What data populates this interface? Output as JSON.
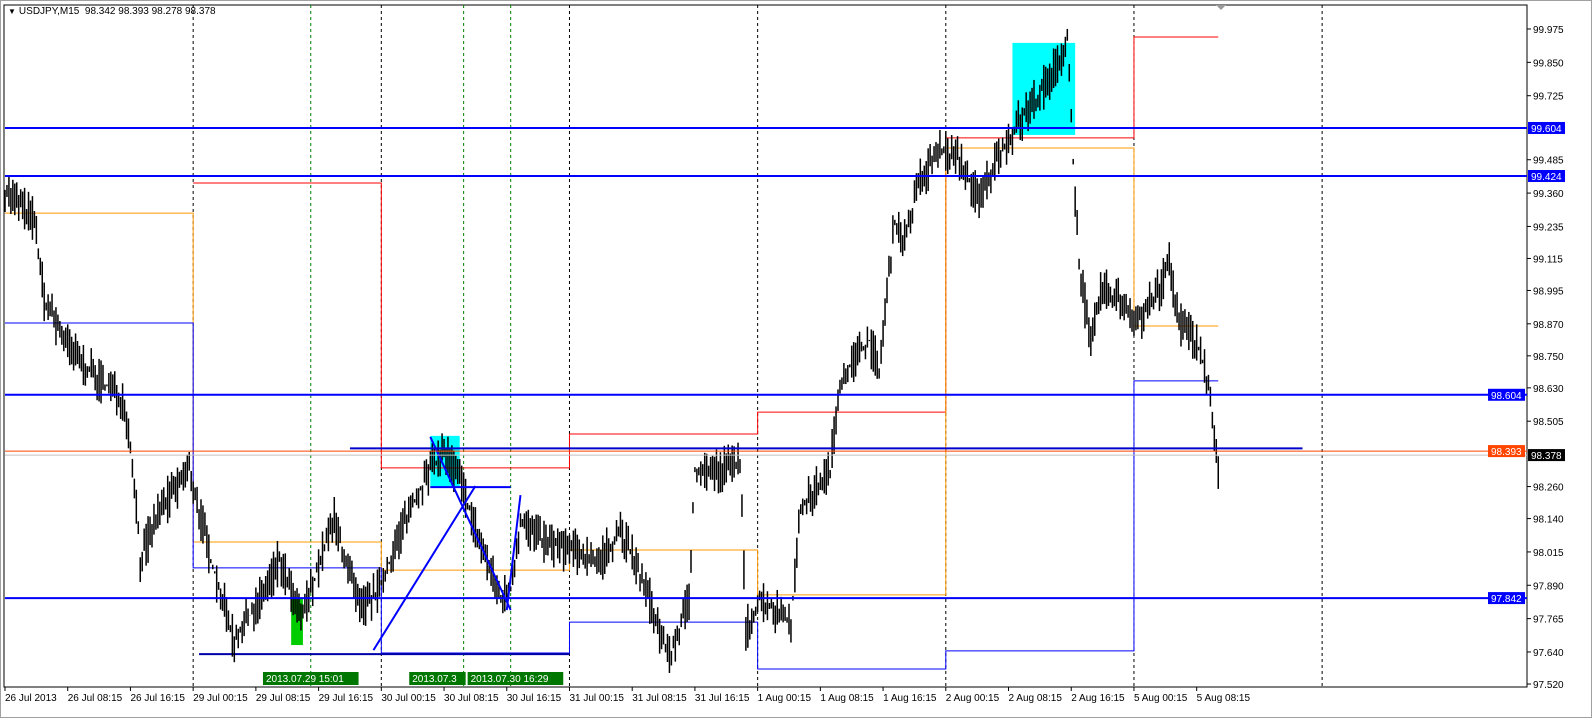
{
  "header": {
    "symbol": "USDJPY,M15",
    "ohlc": "98.342 98.393 98.278 98.378",
    "menu_icon": "triangle-down-icon"
  },
  "colors": {
    "bars": "#000000",
    "hline": "#0000ff",
    "pivot_red": "#ff0000",
    "pivot_orange": "#ff9900",
    "pivot_blue": "#0000ff",
    "rect_cyan": "#00ffff",
    "rect_green": "#00cc00",
    "ask_line": "#ff4500",
    "bid_line": "#c0c0c0",
    "time_label_bg": "#007700",
    "day_sep": "#000000",
    "vline_green": "#008000"
  },
  "chart_data": {
    "type": "bar",
    "subtype": "ohlc",
    "timeframe": "M15",
    "ylim": [
      97.52,
      99.975
    ],
    "x_unit": "M15 bars",
    "y_ticks": [
      "99.975",
      "99.850",
      "99.725",
      "99.485",
      "99.360",
      "99.235",
      "99.115",
      "98.995",
      "98.870",
      "98.750",
      "98.630",
      "98.505",
      "98.260",
      "98.140",
      "98.015",
      "97.890",
      "97.765",
      "97.640",
      "97.520"
    ],
    "x_ticks": [
      {
        "bar": 0,
        "label": "26 Jul 2013"
      },
      {
        "bar": 32,
        "label": "26 Jul 08:15"
      },
      {
        "bar": 64,
        "label": "26 Jul 16:15"
      },
      {
        "bar": 96,
        "label": "29 Jul 00:15"
      },
      {
        "bar": 128,
        "label": "29 Jul 08:15"
      },
      {
        "bar": 160,
        "label": "29 Jul 16:15"
      },
      {
        "bar": 192,
        "label": "30 Jul 00:15"
      },
      {
        "bar": 224,
        "label": "30 Jul 08:15"
      },
      {
        "bar": 256,
        "label": "30 Jul 16:15"
      },
      {
        "bar": 288,
        "label": "31 Jul 00:15"
      },
      {
        "bar": 320,
        "label": "31 Jul 08:15"
      },
      {
        "bar": 352,
        "label": "31 Jul 16:15"
      },
      {
        "bar": 384,
        "label": "1 Aug 00:15"
      },
      {
        "bar": 416,
        "label": "1 Aug 08:15"
      },
      {
        "bar": 448,
        "label": "1 Aug 16:15"
      },
      {
        "bar": 480,
        "label": "2 Aug 00:15"
      },
      {
        "bar": 512,
        "label": "2 Aug 08:15"
      },
      {
        "bar": 544,
        "label": "2 Aug 16:15"
      },
      {
        "bar": 576,
        "label": "5 Aug 00:15"
      },
      {
        "bar": 608,
        "label": "5 Aug 08:15"
      }
    ],
    "price_path": [
      [
        0,
        99.372
      ],
      [
        15,
        99.259
      ],
      [
        20,
        98.959
      ],
      [
        33,
        98.772
      ],
      [
        48,
        98.659
      ],
      [
        61,
        98.584
      ],
      [
        66,
        98.285
      ],
      [
        69,
        97.985
      ],
      [
        79,
        98.172
      ],
      [
        94,
        98.322
      ],
      [
        105,
        97.985
      ],
      [
        117,
        97.685
      ],
      [
        130,
        97.835
      ],
      [
        140,
        97.985
      ],
      [
        151,
        97.76
      ],
      [
        161,
        97.985
      ],
      [
        168,
        98.135
      ],
      [
        181,
        97.797
      ],
      [
        191,
        97.872
      ],
      [
        204,
        98.135
      ],
      [
        217,
        98.322
      ],
      [
        224,
        98.397
      ],
      [
        232,
        98.285
      ],
      [
        242,
        98.06
      ],
      [
        253,
        97.835
      ],
      [
        258,
        97.872
      ],
      [
        263,
        98.135
      ],
      [
        273,
        98.06
      ],
      [
        288,
        98.022
      ],
      [
        304,
        97.985
      ],
      [
        314,
        98.097
      ],
      [
        329,
        97.835
      ],
      [
        339,
        97.61
      ],
      [
        349,
        97.835
      ],
      [
        352,
        98.322
      ],
      [
        365,
        98.322
      ],
      [
        375,
        98.36
      ],
      [
        378,
        97.722
      ],
      [
        385,
        97.835
      ],
      [
        401,
        97.76
      ],
      [
        406,
        98.172
      ],
      [
        421,
        98.322
      ],
      [
        426,
        98.659
      ],
      [
        441,
        98.809
      ],
      [
        446,
        98.697
      ],
      [
        454,
        99.259
      ],
      [
        459,
        99.184
      ],
      [
        467,
        99.409
      ],
      [
        477,
        99.521
      ],
      [
        487,
        99.484
      ],
      [
        497,
        99.334
      ],
      [
        508,
        99.521
      ],
      [
        518,
        99.634
      ],
      [
        533,
        99.784
      ],
      [
        542,
        99.934
      ],
      [
        546,
        99.334
      ],
      [
        548,
        99.109
      ],
      [
        554,
        98.772
      ],
      [
        559,
        98.997
      ],
      [
        569,
        98.959
      ],
      [
        579,
        98.884
      ],
      [
        589,
        98.997
      ],
      [
        594,
        99.109
      ],
      [
        599,
        98.884
      ],
      [
        610,
        98.772
      ],
      [
        615,
        98.584
      ],
      [
        619,
        98.292
      ]
    ],
    "last": {
      "open": 98.342,
      "high": 98.393,
      "low": 98.278,
      "close": 98.378,
      "ask": 98.393
    },
    "horizontal_lines": [
      {
        "price": 99.604,
        "label": "99.604"
      },
      {
        "price": 99.424,
        "label": "99.424"
      },
      {
        "price": 98.604,
        "label": "98.604"
      },
      {
        "price": 97.842,
        "label": "97.842"
      }
    ],
    "price_label": "98.378",
    "ask_label": "98.393",
    "level_line": {
      "from_bar": 176,
      "to_bar": 662,
      "price": 98.403
    },
    "support_line": {
      "from_bar": 99,
      "to_bar": 288,
      "price": 97.632
    },
    "pivots": {
      "day_bounds": [
        0,
        96,
        192,
        288,
        384,
        480,
        576,
        619
      ],
      "red": [
        null,
        99.398,
        98.33,
        98.457,
        98.539,
        99.567,
        99.945
      ],
      "orange": [
        99.285,
        98.052,
        97.947,
        98.022,
        97.854,
        99.529,
        98.862
      ],
      "blue": [
        98.873,
        97.955,
        97.636,
        97.752,
        97.576,
        97.644,
        98.656
      ]
    },
    "rectangles": [
      {
        "color": "cyan",
        "bar1": 217,
        "bar2": 232,
        "p1": 98.45,
        "p2": 98.258
      },
      {
        "color": "cyan",
        "bar1": 514,
        "bar2": 546,
        "p1": 99.923,
        "p2": 99.578
      },
      {
        "color": "green",
        "bar1": 146,
        "bar2": 152,
        "p1": 97.842,
        "p2": 97.666
      }
    ],
    "trendlines": [
      {
        "bar1": 188,
        "p1": 97.647,
        "bar2": 240,
        "p2": 98.262
      },
      {
        "bar1": 217,
        "p1": 98.446,
        "bar2": 258,
        "p2": 97.797
      },
      {
        "bar1": 256,
        "p1": 97.797,
        "bar2": 263,
        "p2": 98.228
      },
      {
        "bar1": 217,
        "p1": 98.258,
        "bar2": 258,
        "p2": 98.258
      }
    ],
    "day_separators": [
      96,
      192,
      288,
      384,
      480,
      576,
      672
    ],
    "green_vlines": [
      {
        "bar": 156,
        "label": "2013.07.29 15:01"
      },
      {
        "bar": 234,
        "label": "2013.07.3"
      },
      {
        "bar": 258,
        "label": "2013.07.30 16:29"
      }
    ]
  }
}
